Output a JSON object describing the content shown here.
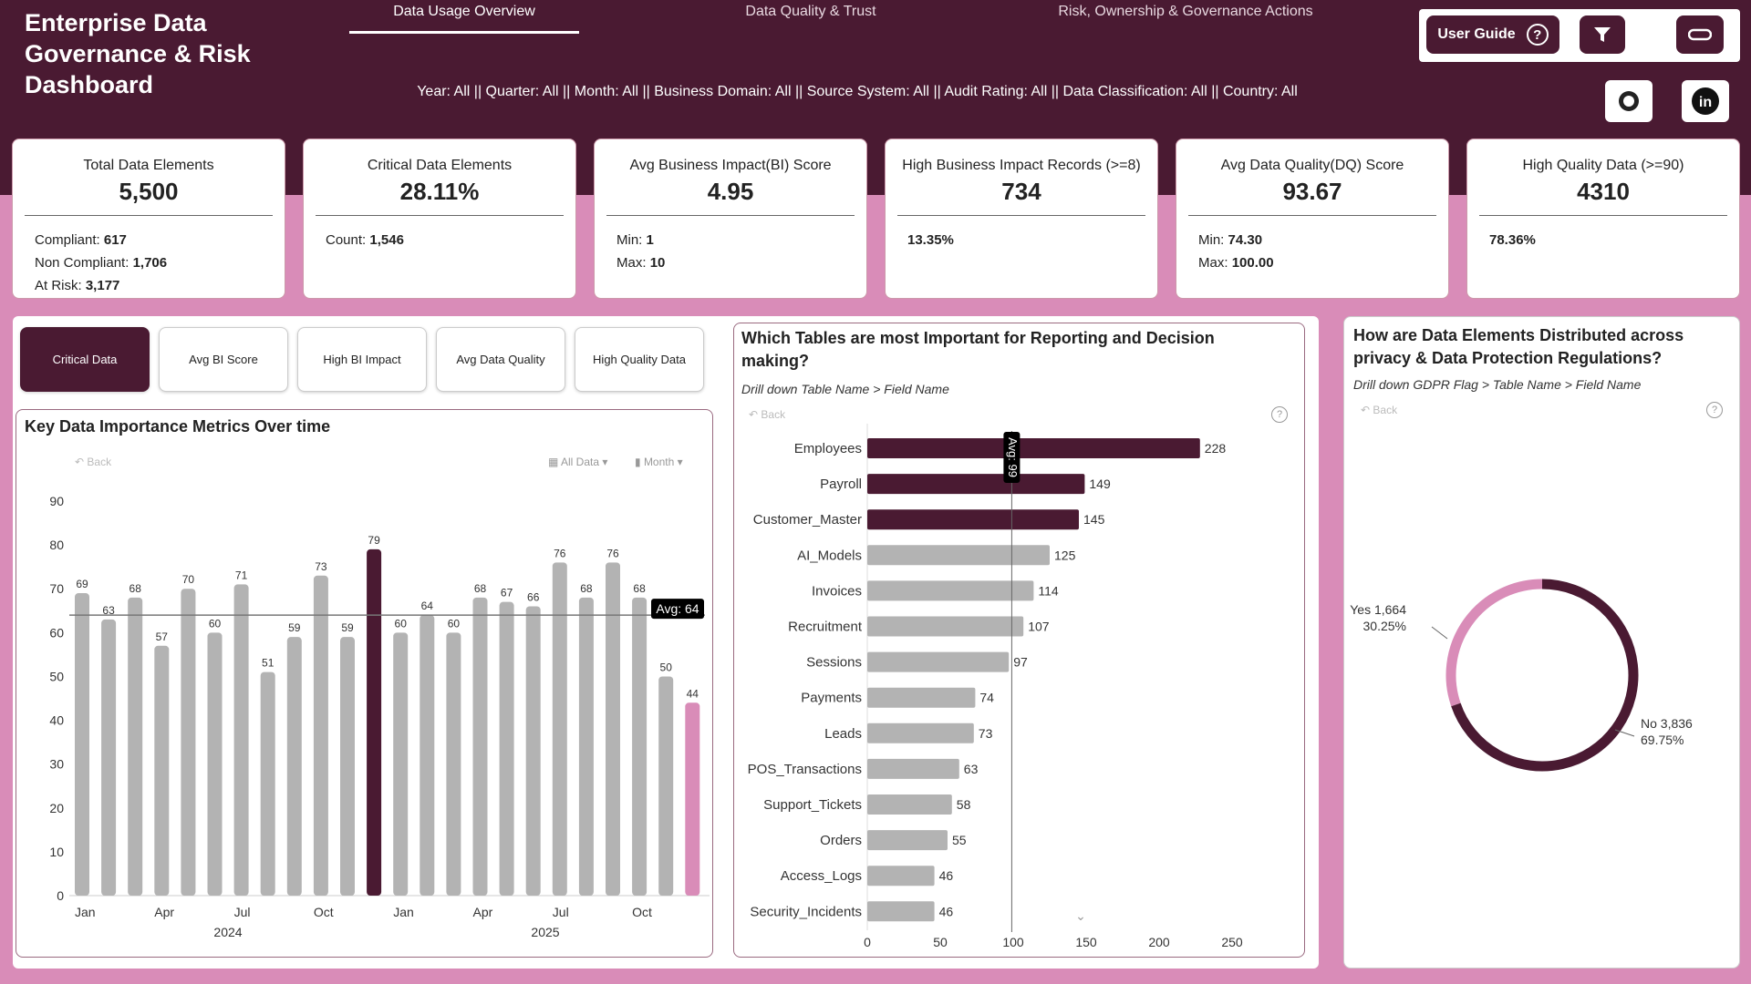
{
  "header": {
    "title": "Enterprise Data Governance & Risk Dashboard",
    "tabs": [
      "Data Usage Overview",
      "Data Quality & Trust",
      "Risk, Ownership & Governance Actions"
    ],
    "filters": "Year: All || Quarter: All || Month: All || Business Domain: All || Source System: All || Audit Rating: All || Data Classification: All || Country: All",
    "user_guide": "User Guide",
    "help_icon": "?"
  },
  "kpis": [
    {
      "label": "Total Data Elements",
      "value": "5,500",
      "lines": [
        [
          "Compliant: ",
          "617"
        ],
        [
          "Non Compliant: ",
          "1,706"
        ],
        [
          "At Risk: ",
          "3,177"
        ]
      ]
    },
    {
      "label": "Critical Data Elements",
      "value": "28.11%",
      "lines": [
        [
          "Count: ",
          "1,546"
        ]
      ]
    },
    {
      "label": "Avg Business Impact(BI) Score",
      "value": "4.95",
      "lines": [
        [
          "Min: ",
          "1"
        ],
        [
          "Max: ",
          "10"
        ]
      ]
    },
    {
      "label": "High Business Impact Records (>=8)",
      "value": "734",
      "lines": [
        [
          "",
          "13.35%"
        ]
      ]
    },
    {
      "label": "Avg Data Quality(DQ) Score",
      "value": "93.67",
      "lines": [
        [
          "Min: ",
          "74.30"
        ],
        [
          "Max: ",
          "100.00"
        ]
      ]
    },
    {
      "label": "High Quality Data (>=90)",
      "value": "4310",
      "lines": [
        [
          "",
          "78.36%"
        ]
      ]
    }
  ],
  "metric_buttons": [
    "Critical Data",
    "Avg BI Score",
    "High BI Impact",
    "Avg Data Quality",
    "High Quality Data"
  ],
  "colors": {
    "dark": "#4a1a32",
    "pink": "#d98cb8",
    "gray": "#b3b3b3"
  },
  "chart_data": [
    {
      "type": "bar",
      "title": "Key Data Importance Metrics Over time",
      "back": "Back",
      "date_filter": "All Data",
      "granularity": "Month",
      "ylim": [
        0,
        90
      ],
      "yticks": [
        0,
        10,
        20,
        30,
        40,
        50,
        60,
        70,
        80,
        90
      ],
      "x_month_labels": [
        "Jan",
        "Apr",
        "Jul",
        "Oct",
        "Jan",
        "Apr",
        "Jul",
        "Oct"
      ],
      "years": [
        "2024",
        "2025"
      ],
      "values": [
        69,
        63,
        68,
        57,
        70,
        60,
        71,
        51,
        59,
        73,
        59,
        79,
        60,
        64,
        60,
        68,
        67,
        66,
        76,
        68,
        76,
        68,
        50,
        44
      ],
      "highlight_index": 11,
      "last_index_color": "pink",
      "average": 64,
      "average_label": "Avg: 64"
    },
    {
      "type": "bar",
      "orientation": "horizontal",
      "title": "Which Tables are most Important for Reporting and Decision making?",
      "subtitle": "Drill down Table Name > Field Name",
      "back": "Back",
      "categories": [
        "Employees",
        "Payroll",
        "Customer_Master",
        "AI_Models",
        "Invoices",
        "Recruitment",
        "Sessions",
        "Payments",
        "Leads",
        "POS_Transactions",
        "Support_Tickets",
        "Orders",
        "Access_Logs",
        "Security_Incidents"
      ],
      "values": [
        228,
        149,
        145,
        125,
        114,
        107,
        97,
        74,
        73,
        63,
        58,
        55,
        46,
        46
      ],
      "highlight_top": 3,
      "xlim": [
        0,
        250
      ],
      "xticks": [
        0,
        50,
        100,
        150,
        200,
        250
      ],
      "average": 99,
      "average_label": "Avg: 99"
    },
    {
      "type": "pie",
      "donut": true,
      "title": "How are Data Elements Distributed across privacy & Data Protection Regulations?",
      "subtitle": "Drill down GDPR Flag > Table Name > Field Name",
      "back": "Back",
      "slices": [
        {
          "label": "Yes",
          "value": 1664,
          "value_label": "1,664",
          "pct": "30.25%"
        },
        {
          "label": "No",
          "value": 3836,
          "value_label": "3,836",
          "pct": "69.75%"
        }
      ]
    }
  ]
}
